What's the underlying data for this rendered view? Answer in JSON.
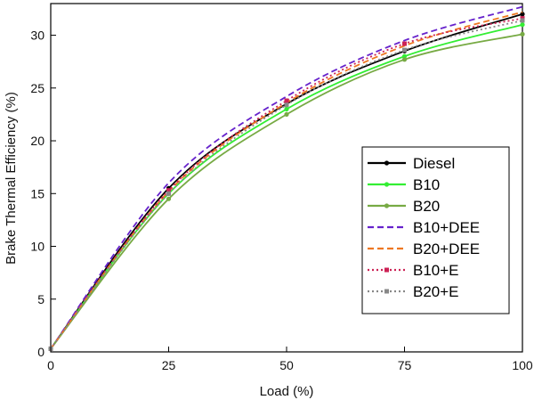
{
  "chart_data": {
    "type": "line",
    "xlabel": "Load (%)",
    "ylabel": "Brake Thermal Efficiency (%)",
    "xlim": [
      0,
      100
    ],
    "ylim": [
      0,
      33
    ],
    "xticks": [
      0,
      25,
      50,
      75,
      100
    ],
    "yticks": [
      0,
      5,
      10,
      15,
      20,
      25,
      30
    ],
    "legend_position": "right",
    "grid": false,
    "x": [
      0,
      25,
      50,
      75,
      100
    ],
    "series": [
      {
        "name": "Diesel",
        "values": [
          0.3,
          15.5,
          23.5,
          28.5,
          32.0
        ],
        "color": "#000000",
        "dash": "solid",
        "marker": "circle"
      },
      {
        "name": "B10",
        "values": [
          0.3,
          15.0,
          23.0,
          28.0,
          31.0
        ],
        "color": "#33ee33",
        "dash": "solid",
        "marker": "circle"
      },
      {
        "name": "B20",
        "values": [
          0.3,
          14.5,
          22.5,
          27.7,
          30.1
        ],
        "color": "#77aa44",
        "dash": "solid",
        "marker": "circle"
      },
      {
        "name": "B10+DEE",
        "values": [
          0.3,
          16.0,
          24.2,
          29.5,
          32.7
        ],
        "color": "#6622cc",
        "dash": "dashed",
        "marker": "none"
      },
      {
        "name": "B20+DEE",
        "values": [
          0.3,
          15.2,
          23.6,
          29.0,
          32.2
        ],
        "color": "#ee7722",
        "dash": "dashed",
        "marker": "none"
      },
      {
        "name": "B10+E",
        "values": [
          0.3,
          15.3,
          23.8,
          29.2,
          31.6
        ],
        "color": "#cc2255",
        "dash": "dotted",
        "marker": "square"
      },
      {
        "name": "B20+E",
        "values": [
          0.3,
          15.0,
          23.4,
          28.6,
          31.4
        ],
        "color": "#888888",
        "dash": "dotted",
        "marker": "square"
      }
    ]
  }
}
